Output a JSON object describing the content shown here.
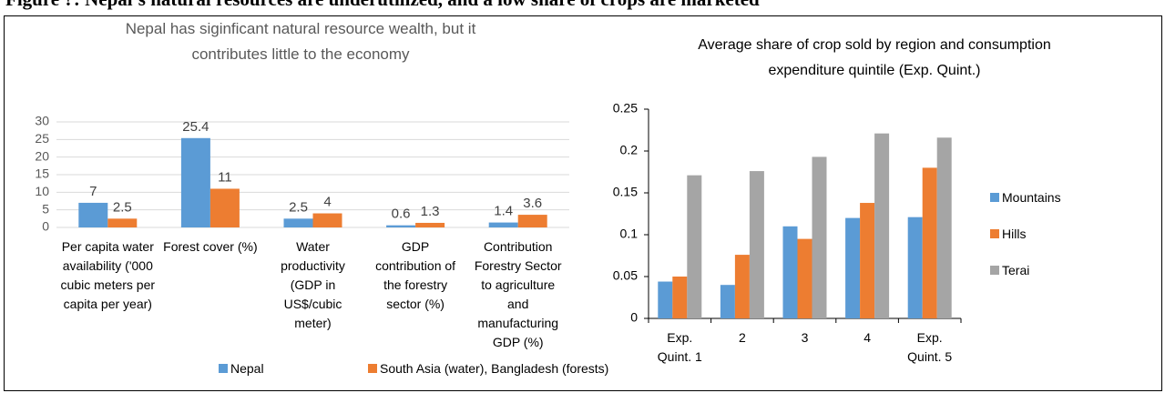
{
  "heading": "Figure ?: Nepal’s natural resources are underutilized, and a low share of crops are marketed",
  "chart_data": [
    {
      "type": "bar",
      "title": "Nepal has siginficant natural resource wealth, but it contributes little to the economy",
      "categories": [
        "Per capita water availability ('000 cubic meters per capita per year)",
        "Forest cover (%)",
        "Water productivity (GDP in US$/cubic meter)",
        "GDP contribution of the forestry sector (%)",
        "Contribution Forestry Sector to agriculture and manufacturing GDP (%)"
      ],
      "series": [
        {
          "name": "Nepal",
          "color": "#5b9bd5",
          "values": [
            7,
            25.4,
            2.5,
            0.6,
            1.4
          ]
        },
        {
          "name": "South Asia (water), Bangladesh (forests)",
          "color": "#ed7d31",
          "values": [
            2.5,
            11,
            4,
            1.3,
            3.6
          ]
        }
      ],
      "ylim": [
        0,
        30
      ],
      "yticks": [
        0,
        5,
        10,
        15,
        20,
        25,
        30
      ],
      "grid": true,
      "data_labels": true,
      "legend": "bottom"
    },
    {
      "type": "bar",
      "title": "Average share of crop sold by region and consumption expenditure quintile (Exp. Quint.)",
      "categories": [
        "Exp. Quint. 1",
        "2",
        "3",
        "4",
        "Exp. Quint. 5"
      ],
      "series": [
        {
          "name": "Mountains",
          "color": "#5b9bd5",
          "values": [
            0.044,
            0.04,
            0.11,
            0.12,
            0.121
          ]
        },
        {
          "name": "Hills",
          "color": "#ed7d31",
          "values": [
            0.05,
            0.076,
            0.095,
            0.138,
            0.18
          ]
        },
        {
          "name": "Terai",
          "color": "#a5a5a5",
          "values": [
            0.171,
            0.176,
            0.193,
            0.221,
            0.216
          ]
        }
      ],
      "ylim": [
        0,
        0.25
      ],
      "yticks": [
        0,
        0.05,
        0.1,
        0.15,
        0.2,
        0.25
      ],
      "grid": false,
      "data_labels": false,
      "legend": "right"
    }
  ]
}
